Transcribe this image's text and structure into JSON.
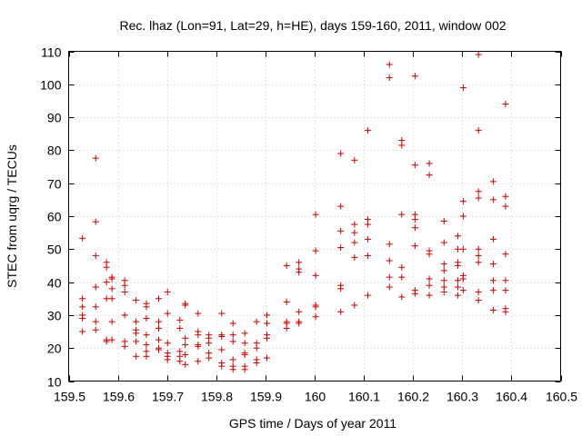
{
  "chart_data": {
    "type": "scatter",
    "title": "Rec. lhaz (Lon=91, Lat=29, h=HE), days 159-160, 2011, window 002",
    "xlabel": "GPS time / Days of year 2011",
    "ylabel": "STEC from uqrg / TECUs",
    "xlim": [
      159.5,
      160.5
    ],
    "ylim": [
      10,
      110
    ],
    "xticks": [
      159.5,
      159.6,
      159.7,
      159.8,
      159.9,
      160,
      160.1,
      160.2,
      160.3,
      160.4,
      160.5
    ],
    "yticks": [
      10,
      20,
      30,
      40,
      50,
      60,
      70,
      80,
      90,
      100,
      110
    ],
    "xtick_labels": [
      "159.5",
      "159.6",
      "159.7",
      "159.8",
      "159.9",
      "160",
      "160.1",
      "160.2",
      "160.3",
      "160.4",
      "160.5"
    ],
    "ytick_labels": [
      "10",
      "20",
      "30",
      "40",
      "50",
      "60",
      "70",
      "80",
      "90",
      "100",
      "110"
    ],
    "grid": true,
    "marker": "+",
    "color": "#cc0000",
    "series": [
      {
        "points": [
          [
            159.528,
            53.3
          ],
          [
            159.528,
            35
          ],
          [
            159.528,
            32.5
          ],
          [
            159.528,
            30
          ],
          [
            159.528,
            29
          ],
          [
            159.528,
            25
          ],
          [
            159.555,
            77.6
          ],
          [
            159.555,
            58.3
          ],
          [
            159.555,
            48
          ],
          [
            159.555,
            38.5
          ],
          [
            159.555,
            32.5
          ],
          [
            159.555,
            28
          ],
          [
            159.555,
            25.5
          ],
          [
            159.577,
            46
          ],
          [
            159.577,
            44.5
          ],
          [
            159.577,
            40
          ],
          [
            159.577,
            35
          ],
          [
            159.577,
            22.5
          ],
          [
            159.577,
            22
          ],
          [
            159.588,
            41.5
          ],
          [
            159.588,
            41
          ],
          [
            159.588,
            38
          ],
          [
            159.588,
            35
          ],
          [
            159.588,
            28
          ],
          [
            159.588,
            22.5
          ],
          [
            159.614,
            40.5
          ],
          [
            159.614,
            39
          ],
          [
            159.614,
            37
          ],
          [
            159.614,
            30
          ],
          [
            159.614,
            22
          ],
          [
            159.614,
            20.5
          ],
          [
            159.637,
            34.5
          ],
          [
            159.637,
            28
          ],
          [
            159.637,
            25.5
          ],
          [
            159.637,
            24.5
          ],
          [
            159.637,
            22
          ],
          [
            159.637,
            17.5
          ],
          [
            159.658,
            33.5
          ],
          [
            159.658,
            32.5
          ],
          [
            159.658,
            29
          ],
          [
            159.658,
            24
          ],
          [
            159.658,
            21
          ],
          [
            159.658,
            19
          ],
          [
            159.658,
            17.5
          ],
          [
            159.683,
            35
          ],
          [
            159.683,
            28
          ],
          [
            159.683,
            26
          ],
          [
            159.683,
            22.5
          ],
          [
            159.683,
            20
          ],
          [
            159.683,
            19.5
          ],
          [
            159.701,
            37
          ],
          [
            159.701,
            30.5
          ],
          [
            159.701,
            21.5
          ],
          [
            159.701,
            18.5
          ],
          [
            159.701,
            17.5
          ],
          [
            159.701,
            16.5
          ],
          [
            159.726,
            28.5
          ],
          [
            159.726,
            26
          ],
          [
            159.726,
            19
          ],
          [
            159.726,
            17.5
          ],
          [
            159.726,
            16
          ],
          [
            159.737,
            33.5
          ],
          [
            159.737,
            33
          ],
          [
            159.737,
            23
          ],
          [
            159.737,
            21
          ],
          [
            159.737,
            18
          ],
          [
            159.737,
            15
          ],
          [
            159.763,
            30.5
          ],
          [
            159.763,
            25
          ],
          [
            159.763,
            24
          ],
          [
            159.763,
            21
          ],
          [
            159.763,
            20.5
          ],
          [
            159.763,
            16
          ],
          [
            159.785,
            24
          ],
          [
            159.785,
            23
          ],
          [
            159.785,
            21.5
          ],
          [
            159.785,
            18.5
          ],
          [
            159.785,
            17
          ],
          [
            159.811,
            30.5
          ],
          [
            159.811,
            24
          ],
          [
            159.811,
            23.5
          ],
          [
            159.811,
            19.5
          ],
          [
            159.811,
            15.5
          ],
          [
            159.811,
            14.5
          ],
          [
            159.834,
            27.5
          ],
          [
            159.834,
            24
          ],
          [
            159.834,
            22
          ],
          [
            159.834,
            16.5
          ],
          [
            159.834,
            14.5
          ],
          [
            159.834,
            13.5
          ],
          [
            159.858,
            24.5
          ],
          [
            159.858,
            21.5
          ],
          [
            159.858,
            18.5
          ],
          [
            159.858,
            18
          ],
          [
            159.858,
            14.5
          ],
          [
            159.858,
            13.5
          ],
          [
            159.882,
            28
          ],
          [
            159.882,
            21.5
          ],
          [
            159.882,
            20
          ],
          [
            159.882,
            16.5
          ],
          [
            159.882,
            15.5
          ],
          [
            159.903,
            30
          ],
          [
            159.903,
            27.5
          ],
          [
            159.903,
            24
          ],
          [
            159.903,
            23
          ],
          [
            159.903,
            17
          ],
          [
            159.943,
            45
          ],
          [
            159.943,
            34
          ],
          [
            159.943,
            28
          ],
          [
            159.943,
            27.5
          ],
          [
            159.943,
            26
          ],
          [
            159.968,
            46
          ],
          [
            159.968,
            44
          ],
          [
            159.968,
            43
          ],
          [
            159.968,
            31
          ],
          [
            159.968,
            28
          ],
          [
            159.968,
            27.5
          ],
          [
            160.002,
            60.5
          ],
          [
            160.002,
            49.5
          ],
          [
            160.002,
            42
          ],
          [
            160.002,
            33
          ],
          [
            160.002,
            32.5
          ],
          [
            160.002,
            29.5
          ],
          [
            160.053,
            79
          ],
          [
            160.053,
            63
          ],
          [
            160.053,
            55.5
          ],
          [
            160.053,
            50.5
          ],
          [
            160.053,
            39
          ],
          [
            160.053,
            38
          ],
          [
            160.053,
            31
          ],
          [
            160.081,
            77
          ],
          [
            160.081,
            57.5
          ],
          [
            160.081,
            55
          ],
          [
            160.081,
            52
          ],
          [
            160.081,
            47.5
          ],
          [
            160.081,
            33
          ],
          [
            160.108,
            86
          ],
          [
            160.108,
            59
          ],
          [
            160.108,
            57.5
          ],
          [
            160.108,
            53
          ],
          [
            160.108,
            48
          ],
          [
            160.108,
            36
          ],
          [
            160.152,
            106
          ],
          [
            160.152,
            102
          ],
          [
            160.152,
            51.5
          ],
          [
            160.152,
            46.5
          ],
          [
            160.152,
            41.5
          ],
          [
            160.152,
            38.5
          ],
          [
            160.177,
            83
          ],
          [
            160.177,
            81.5
          ],
          [
            160.177,
            60.5
          ],
          [
            160.177,
            44.5
          ],
          [
            160.177,
            41.5
          ],
          [
            160.177,
            35.5
          ],
          [
            160.204,
            102.5
          ],
          [
            160.204,
            75.5
          ],
          [
            160.204,
            60.5
          ],
          [
            160.204,
            59
          ],
          [
            160.204,
            56.5
          ],
          [
            160.204,
            51
          ],
          [
            160.204,
            37.5
          ],
          [
            160.204,
            36.5
          ],
          [
            160.233,
            76
          ],
          [
            160.233,
            72.5
          ],
          [
            160.233,
            49.5
          ],
          [
            160.233,
            48.5
          ],
          [
            160.233,
            41
          ],
          [
            160.233,
            39
          ],
          [
            160.233,
            36
          ],
          [
            160.263,
            58.5
          ],
          [
            160.263,
            52
          ],
          [
            160.263,
            45.5
          ],
          [
            160.263,
            43.5
          ],
          [
            160.263,
            40.5
          ],
          [
            160.263,
            38.5
          ],
          [
            160.263,
            37
          ],
          [
            160.291,
            54
          ],
          [
            160.291,
            50
          ],
          [
            160.291,
            46
          ],
          [
            160.291,
            45
          ],
          [
            160.291,
            40.5
          ],
          [
            160.291,
            38.5
          ],
          [
            160.291,
            36
          ],
          [
            160.302,
            99
          ],
          [
            160.302,
            64.5
          ],
          [
            160.302,
            60
          ],
          [
            160.302,
            50
          ],
          [
            160.302,
            42
          ],
          [
            160.302,
            41
          ],
          [
            160.302,
            37.5
          ],
          [
            160.333,
            109
          ],
          [
            160.333,
            86
          ],
          [
            160.333,
            67.5
          ],
          [
            160.333,
            65.5
          ],
          [
            160.333,
            50
          ],
          [
            160.333,
            48
          ],
          [
            160.333,
            46
          ],
          [
            160.333,
            37
          ],
          [
            160.333,
            34.5
          ],
          [
            160.363,
            70.5
          ],
          [
            160.363,
            65
          ],
          [
            160.363,
            53
          ],
          [
            160.363,
            45.5
          ],
          [
            160.363,
            40.5
          ],
          [
            160.363,
            37.5
          ],
          [
            160.363,
            31.5
          ],
          [
            160.388,
            94
          ],
          [
            160.388,
            66
          ],
          [
            160.388,
            63
          ],
          [
            160.388,
            48.5
          ],
          [
            160.388,
            40.5
          ],
          [
            160.388,
            37.5
          ],
          [
            160.388,
            32
          ],
          [
            160.388,
            31
          ]
        ]
      }
    ]
  }
}
